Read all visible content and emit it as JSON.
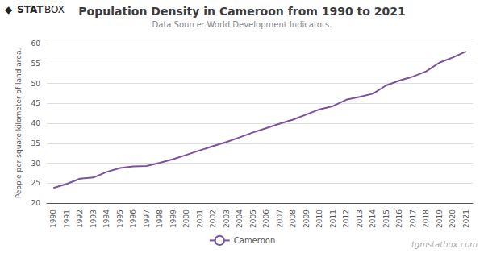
{
  "chart_data": {
    "type": "line",
    "title": "Population Density in Cameroon from 1990 to 2021",
    "subtitle": "Data Source: World Development Indicators.",
    "ylabel": "People per square kilometer of land area.",
    "categories": [
      1990,
      1991,
      1992,
      1993,
      1994,
      1995,
      1996,
      1997,
      1998,
      1999,
      2000,
      2001,
      2002,
      2003,
      2004,
      2005,
      2006,
      2007,
      2008,
      2009,
      2010,
      2011,
      2012,
      2013,
      2014,
      2015,
      2016,
      2017,
      2018,
      2019,
      2020,
      2021
    ],
    "series": [
      {
        "name": "Cameroon",
        "color": "#7B52A0",
        "values": [
          23.8,
          24.8,
          26.1,
          26.4,
          27.8,
          28.8,
          29.2,
          29.3,
          30.1,
          31.0,
          32.1,
          33.2,
          34.3,
          35.3,
          36.5,
          37.7,
          38.8,
          39.9,
          40.9,
          42.2,
          43.5,
          44.3,
          45.9,
          46.6,
          47.4,
          49.5,
          50.7,
          51.7,
          53.0,
          55.2,
          56.5,
          58.0
        ]
      }
    ],
    "ylim": [
      20,
      60
    ],
    "yticks": [
      20,
      25,
      30,
      35,
      40,
      45,
      50,
      55,
      60
    ],
    "grid": true,
    "legend": "bottom",
    "annotations": [
      "◆",
      "STAT",
      "BOX",
      "tgmstatbox.com"
    ]
  }
}
